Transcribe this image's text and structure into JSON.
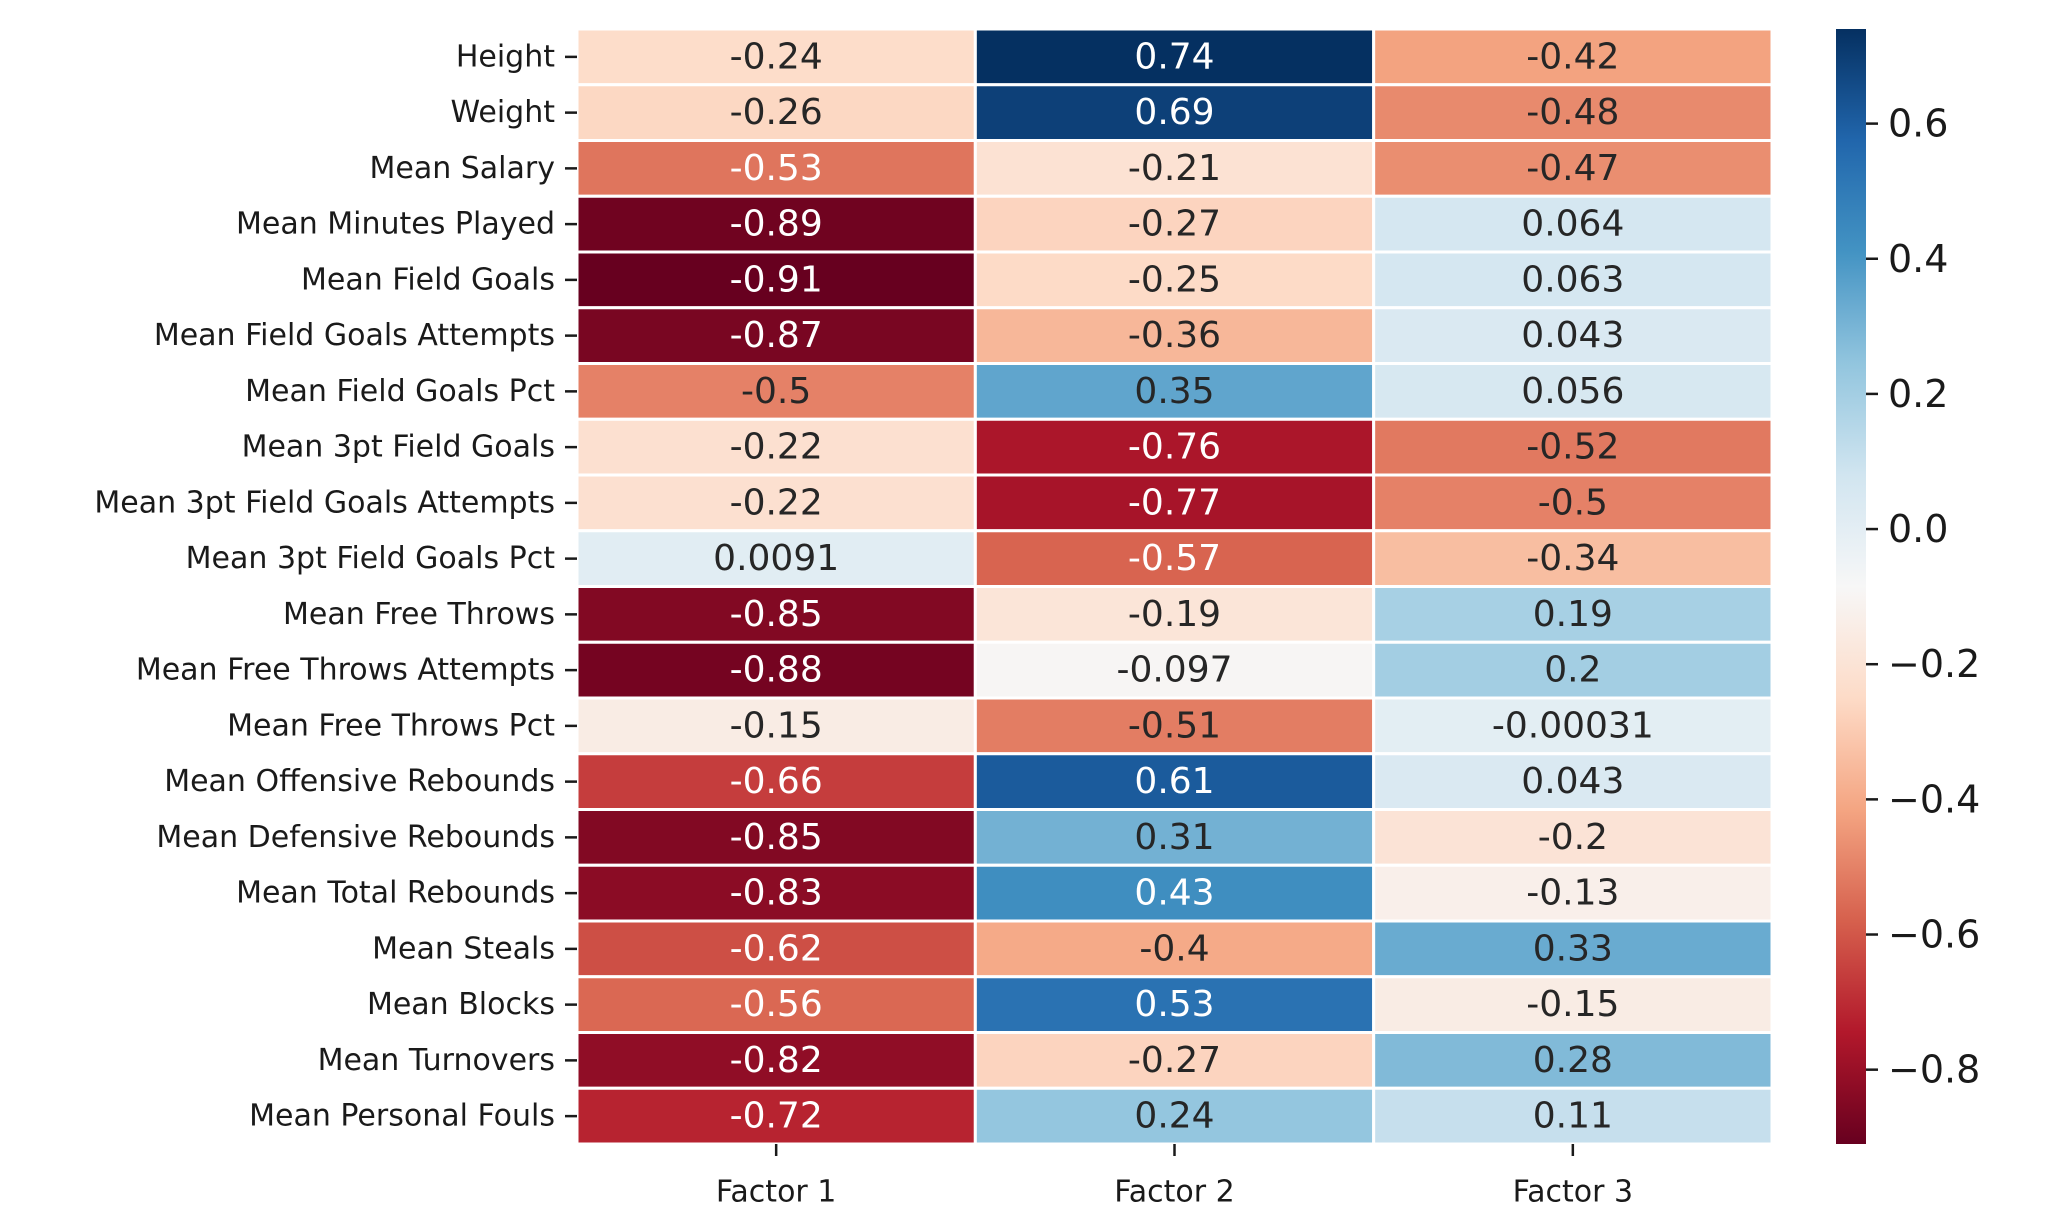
{
  "chart_data": {
    "type": "heatmap",
    "title": "",
    "xlabel": "",
    "ylabel": "",
    "colormap": "RdBu",
    "vmin": -0.91,
    "vmax": 0.74,
    "columns": [
      "Factor 1",
      "Factor 2",
      "Factor 3"
    ],
    "rows": [
      "Height",
      "Weight",
      "Mean Salary",
      "Mean Minutes Played",
      "Mean Field Goals",
      "Mean Field Goals Attempts",
      "Mean Field Goals Pct",
      "Mean 3pt Field Goals",
      "Mean 3pt Field Goals Attempts",
      "Mean 3pt Field Goals Pct",
      "Mean Free Throws",
      "Mean Free Throws Attempts",
      "Mean Free Throws Pct",
      "Mean Offensive Rebounds",
      "Mean Defensive Rebounds",
      "Mean Total Rebounds",
      "Mean Steals",
      "Mean Blocks",
      "Mean Turnovers",
      "Mean Personal Fouls"
    ],
    "values": [
      [
        -0.24,
        0.74,
        -0.42
      ],
      [
        -0.26,
        0.69,
        -0.48
      ],
      [
        -0.53,
        -0.21,
        -0.47
      ],
      [
        -0.89,
        -0.27,
        0.064
      ],
      [
        -0.91,
        -0.25,
        0.063
      ],
      [
        -0.87,
        -0.36,
        0.043
      ],
      [
        -0.5,
        0.35,
        0.056
      ],
      [
        -0.22,
        -0.76,
        -0.52
      ],
      [
        -0.22,
        -0.77,
        -0.5
      ],
      [
        0.0091,
        -0.57,
        -0.34
      ],
      [
        -0.85,
        -0.19,
        0.19
      ],
      [
        -0.88,
        -0.097,
        0.2
      ],
      [
        -0.15,
        -0.51,
        -0.00031
      ],
      [
        -0.66,
        0.61,
        0.043
      ],
      [
        -0.85,
        0.31,
        -0.2
      ],
      [
        -0.83,
        0.43,
        -0.13
      ],
      [
        -0.62,
        -0.4,
        0.33
      ],
      [
        -0.56,
        0.53,
        -0.15
      ],
      [
        -0.82,
        -0.27,
        0.28
      ],
      [
        -0.72,
        0.24,
        0.11
      ]
    ],
    "colorbar": {
      "ticks": [
        0.6,
        0.4,
        0.2,
        0.0,
        -0.2,
        -0.4,
        -0.6,
        -0.8
      ],
      "tick_labels": [
        "0.6",
        "0.4",
        "0.2",
        "0.0",
        "−0.2",
        "−0.4",
        "−0.6",
        "−0.8"
      ]
    },
    "grid": false,
    "legend": "colorbar-right"
  }
}
